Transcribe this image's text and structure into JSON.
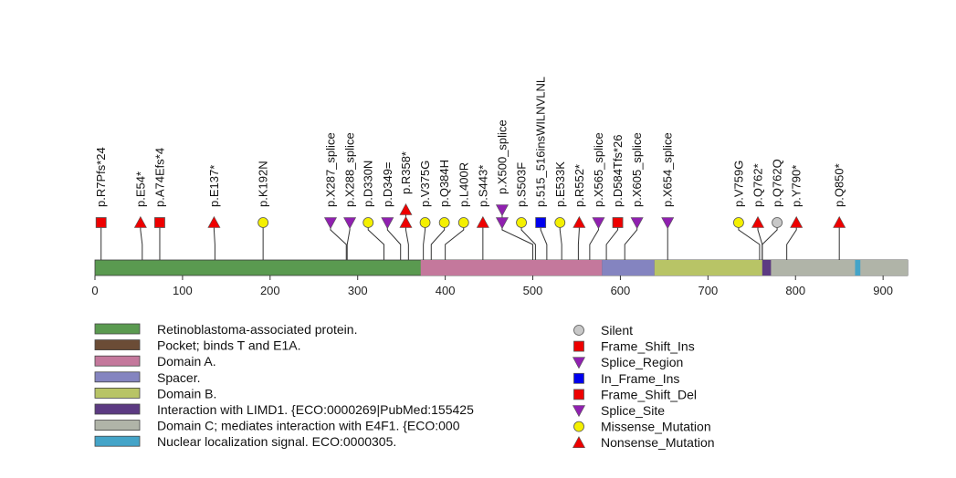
{
  "chart_data": {
    "type": "lollipop",
    "protein_length": 928,
    "x_ticks": [
      0,
      100,
      200,
      300,
      400,
      500,
      600,
      700,
      800,
      900
    ],
    "domains": [
      {
        "name": "Retinoblastoma-associated protein.",
        "start": 1,
        "end": 928,
        "color": "#5a9a50",
        "layer": 0
      },
      {
        "name": "Pocket; binds T and E1A.",
        "start": 379,
        "end": 772,
        "color": "#6b4c36",
        "layer": 1
      },
      {
        "name": "Domain A.",
        "start": 373,
        "end": 579,
        "color": "#c4789c",
        "layer": 2
      },
      {
        "name": "Spacer.",
        "start": 580,
        "end": 639,
        "color": "#8484c0",
        "layer": 2
      },
      {
        "name": "Domain B.",
        "start": 640,
        "end": 771,
        "color": "#b8c466",
        "layer": 2
      },
      {
        "name": "Interaction with LIMD1. {ECO:0000269|PubMed:155425",
        "start": 763,
        "end": 772,
        "color": "#5c3a82",
        "layer": 3
      },
      {
        "name": "Domain C; mediates interaction with E4F1. {ECO:000",
        "start": 773,
        "end": 928,
        "color": "#b0b4a8",
        "layer": 3
      },
      {
        "name": "Nuclear localization signal. ECO:0000305.",
        "start": 869,
        "end": 874,
        "color": "#44a4c8",
        "layer": 4
      }
    ],
    "mutations": [
      {
        "label": "p.R7Pfs*24",
        "pos": 7,
        "type": "Frame_Shift_Del",
        "marker_x": 7,
        "stack": 0
      },
      {
        "label": "p.E54*",
        "pos": 54,
        "type": "Nonsense_Mutation",
        "marker_x": 52,
        "stack": 0
      },
      {
        "label": "p.A74Efs*4",
        "pos": 74,
        "type": "Frame_Shift_Del",
        "marker_x": 74,
        "stack": 0
      },
      {
        "label": "p.E137*",
        "pos": 137,
        "type": "Nonsense_Mutation",
        "marker_x": 136,
        "stack": 0
      },
      {
        "label": "p.K192N",
        "pos": 192,
        "type": "Missense_Mutation",
        "marker_x": 192,
        "stack": 0
      },
      {
        "label": "p.X287_splice",
        "pos": 287,
        "type": "Splice_Site",
        "marker_x": 269,
        "stack": 0
      },
      {
        "label": "p.X288_splice",
        "pos": 288,
        "type": "Splice_Site",
        "marker_x": 291,
        "stack": 0
      },
      {
        "label": "p.D330N",
        "pos": 330,
        "type": "Missense_Mutation",
        "marker_x": 312,
        "stack": 0
      },
      {
        "label": "p.D349=",
        "pos": 349,
        "type": "Splice_Site",
        "marker_x": 334,
        "stack": 0
      },
      {
        "label": "p.R358*",
        "pos": 358,
        "type": "Nonsense_Mutation",
        "marker_x": 355,
        "stack": 1
      },
      {
        "label": "p.V375G",
        "pos": 375,
        "type": "Missense_Mutation",
        "marker_x": 377,
        "stack": 0
      },
      {
        "label": "p.Q384H",
        "pos": 384,
        "type": "Missense_Mutation",
        "marker_x": 399,
        "stack": 0
      },
      {
        "label": "p.L400R",
        "pos": 400,
        "type": "Missense_Mutation",
        "marker_x": 421,
        "stack": 0
      },
      {
        "label": "p.S443*",
        "pos": 443,
        "type": "Nonsense_Mutation",
        "marker_x": 443,
        "stack": 0
      },
      {
        "label": "p.X500_splice",
        "pos": 500,
        "type": "Splice_Site",
        "marker_x": 465,
        "stack": 1
      },
      {
        "label": "p.S503F",
        "pos": 503,
        "type": "Missense_Mutation",
        "marker_x": 487,
        "stack": 0
      },
      {
        "label": "p.515_516insWILNVLNL",
        "pos": 516,
        "type": "In_Frame_Ins",
        "marker_x": 509,
        "stack": 0
      },
      {
        "label": "p.E533K",
        "pos": 533,
        "type": "Missense_Mutation",
        "marker_x": 531,
        "stack": 0
      },
      {
        "label": "p.R552*",
        "pos": 552,
        "type": "Nonsense_Mutation",
        "marker_x": 553,
        "stack": 0
      },
      {
        "label": "p.X565_splice",
        "pos": 565,
        "type": "Splice_Site",
        "marker_x": 575,
        "stack": 0
      },
      {
        "label": "p.D584Tfs*26",
        "pos": 584,
        "type": "Frame_Shift_Del",
        "marker_x": 597,
        "stack": 0
      },
      {
        "label": "p.X605_splice",
        "pos": 605,
        "type": "Splice_Site",
        "marker_x": 619,
        "stack": 0
      },
      {
        "label": "p.X654_splice",
        "pos": 654,
        "type": "Splice_Site",
        "marker_x": 654,
        "stack": 0
      },
      {
        "label": "p.V759G",
        "pos": 759,
        "type": "Missense_Mutation",
        "marker_x": 735,
        "stack": 0
      },
      {
        "label": "p.Q762*",
        "pos": 762,
        "type": "Nonsense_Mutation",
        "marker_x": 757,
        "stack": 0
      },
      {
        "label": "p.Q762Q",
        "pos": 762,
        "type": "Silent",
        "marker_x": 779,
        "stack": 0
      },
      {
        "label": "p.Y790*",
        "pos": 790,
        "type": "Nonsense_Mutation",
        "marker_x": 801,
        "stack": 0
      },
      {
        "label": "p.Q850*",
        "pos": 850,
        "type": "Nonsense_Mutation",
        "marker_x": 850,
        "stack": 0
      }
    ],
    "mutation_legend": [
      {
        "type": "Silent",
        "label": "Silent",
        "shape": "circle",
        "color": "#c8c8c8"
      },
      {
        "type": "Frame_Shift_Ins",
        "label": "Frame_Shift_Ins",
        "shape": "square",
        "color": "#ee0000"
      },
      {
        "type": "Splice_Region",
        "label": "Splice_Region",
        "shape": "triangle-down",
        "color": "#9020b0"
      },
      {
        "type": "In_Frame_Ins",
        "label": "In_Frame_Ins",
        "shape": "square",
        "color": "#0000ee"
      },
      {
        "type": "Frame_Shift_Del",
        "label": "Frame_Shift_Del",
        "shape": "square",
        "color": "#ee0000"
      },
      {
        "type": "Splice_Site",
        "label": "Splice_Site",
        "shape": "triangle-down",
        "color": "#9020b0"
      },
      {
        "type": "Missense_Mutation",
        "label": "Missense_Mutation",
        "shape": "circle",
        "color": "#f4f000"
      },
      {
        "type": "Nonsense_Mutation",
        "label": "Nonsense_Mutation",
        "shape": "triangle-up",
        "color": "#ee0000"
      }
    ]
  }
}
